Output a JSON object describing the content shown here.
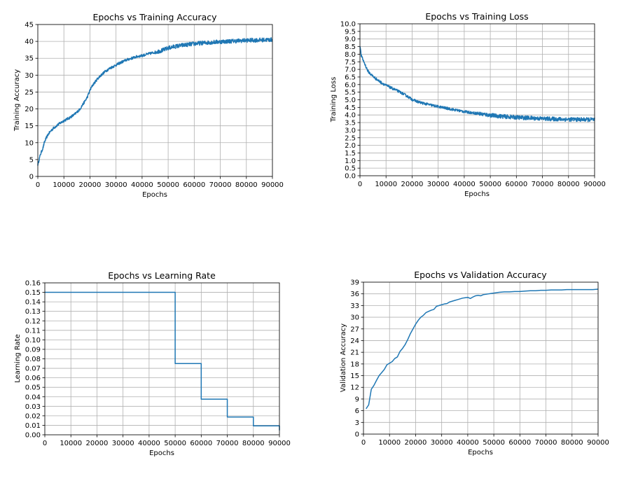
{
  "style": {
    "series_color": "#1f77b4",
    "grid_color": "#b0b0b0"
  },
  "chart_data": [
    {
      "type": "line",
      "title": "Epochs vs Training Accuracy",
      "xlabel": "Epochs",
      "ylabel": "Training Accuracy",
      "xlim": [
        0,
        90000
      ],
      "ylim": [
        0,
        45
      ],
      "xticks": [
        0,
        10000,
        20000,
        30000,
        40000,
        50000,
        60000,
        70000,
        80000,
        90000
      ],
      "yticks": [
        0,
        5,
        10,
        15,
        20,
        25,
        30,
        35,
        40,
        45
      ],
      "ytick_labels": [
        "0",
        "5",
        "10",
        "15",
        "20",
        "25",
        "30",
        "35",
        "40",
        "45"
      ],
      "grid": true,
      "noisy": true,
      "series": [
        {
          "name": "training accuracy",
          "x": [
            0,
            500,
            1000,
            1500,
            2000,
            2500,
            3000,
            4000,
            5000,
            6000,
            8000,
            10000,
            12000,
            14000,
            16000,
            17000,
            18000,
            19000,
            20000,
            21000,
            22000,
            23000,
            24000,
            25000,
            26000,
            28000,
            30000,
            32000,
            34000,
            36000,
            38000,
            40000,
            42000,
            44000,
            46000,
            48000,
            50000,
            52000,
            55000,
            58000,
            60000,
            63000,
            66000,
            70000,
            75000,
            80000,
            85000,
            90000
          ],
          "y": [
            3.5,
            5,
            6.5,
            7.5,
            8.5,
            10,
            11,
            12.5,
            13.5,
            14.3,
            15.5,
            16.5,
            17.3,
            18.3,
            19.8,
            21,
            22.2,
            23.5,
            25.5,
            27,
            28,
            29,
            29.8,
            30.5,
            31.2,
            32.2,
            33,
            33.8,
            34.5,
            35,
            35.5,
            35.8,
            36.2,
            36.6,
            37,
            37.4,
            38,
            38.4,
            38.8,
            39.1,
            39.3,
            39.5,
            39.7,
            39.9,
            40.1,
            40.3,
            40.4,
            40.5
          ]
        }
      ]
    },
    {
      "type": "line",
      "title": "Epochs vs Training Loss",
      "xlabel": "Epochs",
      "ylabel": "Training Loss",
      "xlim": [
        0,
        90000
      ],
      "ylim": [
        0,
        10
      ],
      "xticks": [
        0,
        10000,
        20000,
        30000,
        40000,
        50000,
        60000,
        70000,
        80000,
        90000
      ],
      "yticks": [
        0,
        0.5,
        1,
        1.5,
        2,
        2.5,
        3,
        3.5,
        4,
        4.5,
        5,
        5.5,
        6,
        6.5,
        7,
        7.5,
        8,
        8.5,
        9,
        9.5,
        10
      ],
      "ytick_labels": [
        "0.0",
        "0.5",
        "1.0",
        "1.5",
        "2.0",
        "2.5",
        "3.0",
        "3.5",
        "4.0",
        "4.5",
        "5.0",
        "5.5",
        "6.0",
        "6.5",
        "7.0",
        "7.5",
        "8.0",
        "8.5",
        "9.0",
        "9.5",
        "10.0"
      ],
      "grid": true,
      "noisy": true,
      "series": [
        {
          "name": "training loss",
          "x": [
            0,
            250,
            500,
            1000,
            1500,
            2000,
            2500,
            3000,
            4000,
            5000,
            6000,
            8000,
            10000,
            12000,
            14000,
            16000,
            18000,
            20000,
            22000,
            24000,
            26000,
            28000,
            30000,
            35000,
            40000,
            45000,
            50000,
            55000,
            60000,
            65000,
            70000,
            75000,
            80000,
            85000,
            90000
          ],
          "y": [
            8.6,
            8.2,
            7.9,
            7.7,
            7.5,
            7.3,
            7.1,
            6.9,
            6.7,
            6.55,
            6.4,
            6.15,
            5.95,
            5.78,
            5.62,
            5.45,
            5.25,
            5.02,
            4.88,
            4.78,
            4.7,
            4.62,
            4.55,
            4.38,
            4.22,
            4.1,
            3.98,
            3.9,
            3.84,
            3.8,
            3.76,
            3.73,
            3.71,
            3.7,
            3.69
          ]
        }
      ]
    },
    {
      "type": "line",
      "title": "Epochs vs Learning Rate",
      "xlabel": "Epochs",
      "ylabel": "Learning Rate",
      "xlim": [
        0,
        90000
      ],
      "ylim": [
        0,
        0.16
      ],
      "xticks": [
        0,
        10000,
        20000,
        30000,
        40000,
        50000,
        60000,
        70000,
        80000,
        90000
      ],
      "yticks": [
        0,
        0.01,
        0.02,
        0.03,
        0.04,
        0.05,
        0.06,
        0.07,
        0.08,
        0.09,
        0.1,
        0.11,
        0.12,
        0.13,
        0.14,
        0.15,
        0.16
      ],
      "ytick_labels": [
        "0.00",
        "0.01",
        "0.02",
        "0.03",
        "0.04",
        "0.05",
        "0.06",
        "0.07",
        "0.08",
        "0.09",
        "0.10",
        "0.11",
        "0.12",
        "0.13",
        "0.14",
        "0.15",
        "0.16"
      ],
      "grid": true,
      "noisy": false,
      "series": [
        {
          "name": "learning rate",
          "x": [
            0,
            50000,
            50000,
            60000,
            60000,
            70000,
            70000,
            80000,
            80000,
            90000,
            90000
          ],
          "y": [
            0.15,
            0.15,
            0.075,
            0.075,
            0.0375,
            0.0375,
            0.01875,
            0.01875,
            0.009375,
            0.009375,
            0.0047
          ]
        }
      ]
    },
    {
      "type": "line",
      "title": "Epochs vs Validation Accuracy",
      "xlabel": "Epochs",
      "ylabel": "Validation Accuracy",
      "xlim": [
        0,
        90000
      ],
      "ylim": [
        0,
        39
      ],
      "xticks": [
        0,
        10000,
        20000,
        30000,
        40000,
        50000,
        60000,
        70000,
        80000,
        90000
      ],
      "yticks": [
        0,
        3,
        6,
        9,
        12,
        15,
        18,
        21,
        24,
        27,
        30,
        33,
        36,
        39
      ],
      "ytick_labels": [
        "0",
        "3",
        "6",
        "9",
        "12",
        "15",
        "18",
        "21",
        "24",
        "27",
        "30",
        "33",
        "36",
        "39"
      ],
      "grid": true,
      "noisy": false,
      "series": [
        {
          "name": "validation accuracy",
          "x": [
            1000,
            2000,
            3000,
            4000,
            5000,
            6000,
            7000,
            8000,
            9000,
            10000,
            11000,
            12000,
            13000,
            14000,
            15000,
            16000,
            17000,
            18000,
            19000,
            20000,
            21000,
            22000,
            23000,
            24000,
            25000,
            26000,
            27000,
            28000,
            29000,
            30000,
            31000,
            32000,
            33000,
            34000,
            35000,
            36000,
            37000,
            38000,
            39000,
            40000,
            41000,
            42000,
            43000,
            44000,
            45000,
            46000,
            47000,
            48000,
            49000,
            50000,
            52000,
            54000,
            56000,
            58000,
            60000,
            62000,
            64000,
            66000,
            68000,
            70000,
            72000,
            74000,
            76000,
            78000,
            80000,
            82000,
            84000,
            86000,
            88000,
            90000
          ],
          "y": [
            6.5,
            7.5,
            11.5,
            12.5,
            13.8,
            15,
            15.8,
            16.6,
            17.8,
            18.2,
            18.6,
            19.4,
            19.8,
            21.2,
            22,
            23,
            24.3,
            25.8,
            27,
            28.2,
            29.2,
            30,
            30.5,
            31.2,
            31.5,
            31.8,
            32,
            32.8,
            33,
            33.2,
            33.4,
            33.5,
            33.9,
            34.1,
            34.3,
            34.5,
            34.7,
            34.9,
            35,
            35.1,
            34.8,
            35.2,
            35.5,
            35.6,
            35.5,
            35.8,
            35.9,
            36,
            36.1,
            36.2,
            36.4,
            36.5,
            36.5,
            36.6,
            36.6,
            36.7,
            36.8,
            36.8,
            36.9,
            36.9,
            37,
            37,
            37,
            37.1,
            37.1,
            37.1,
            37.1,
            37.1,
            37.1,
            37.2
          ]
        }
      ]
    }
  ]
}
